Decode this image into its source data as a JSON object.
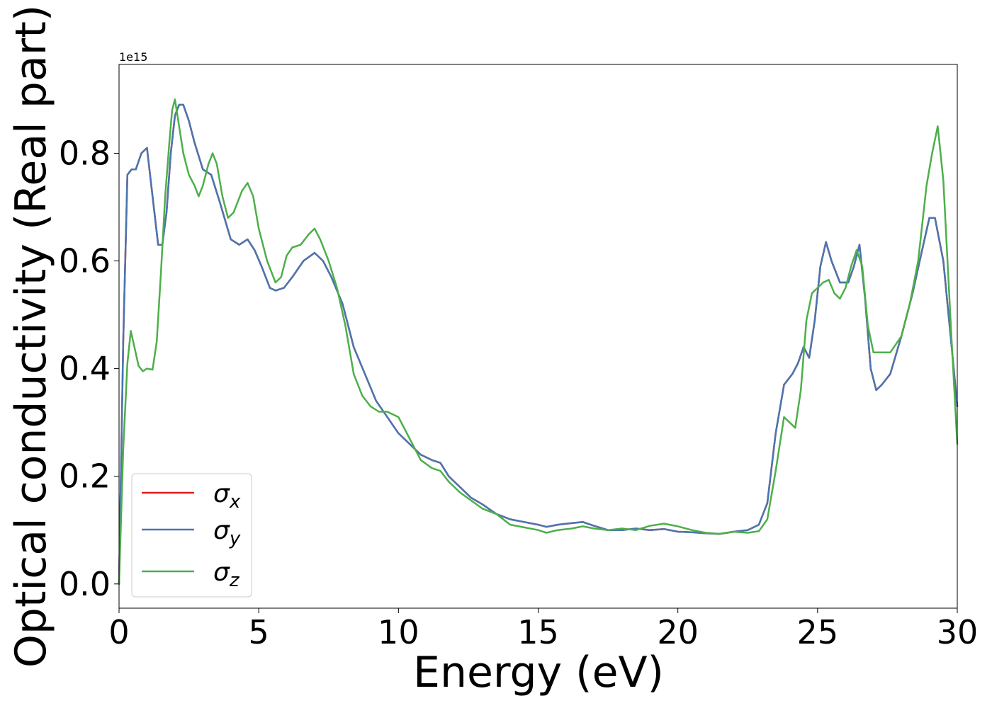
{
  "chart_data": {
    "type": "line",
    "xlabel": "Energy (eV)",
    "ylabel": "Optical conductivity (Real part)",
    "y_offset_label": "1e15",
    "xlim": [
      0,
      30
    ],
    "ylim": [
      -0.045,
      0.965
    ],
    "x_ticks": [
      0,
      5,
      10,
      15,
      20,
      25,
      30
    ],
    "x_tick_labels": [
      "0",
      "5",
      "10",
      "15",
      "20",
      "25",
      "30"
    ],
    "y_ticks": [
      0.0,
      0.2,
      0.4,
      0.6,
      0.8
    ],
    "y_tick_labels": [
      "0.0",
      "0.2",
      "0.4",
      "0.6",
      "0.8"
    ],
    "grid": false,
    "legend_position": "lower-left",
    "series": [
      {
        "name": "σx",
        "sub": "x",
        "color": "#e41a1c",
        "x": [
          0.0,
          0.15,
          0.3,
          0.45,
          0.6,
          0.8,
          1.0,
          1.2,
          1.4,
          1.55,
          1.7,
          1.85,
          2.0,
          2.15,
          2.3,
          2.5,
          2.7,
          3.0,
          3.3,
          3.6,
          4.0,
          4.3,
          4.6,
          4.85,
          5.1,
          5.4,
          5.6,
          5.9,
          6.2,
          6.6,
          7.0,
          7.3,
          7.6,
          8.0,
          8.4,
          8.8,
          9.2,
          9.6,
          10.0,
          10.4,
          10.8,
          11.2,
          11.5,
          11.8,
          12.2,
          12.6,
          13.0,
          13.5,
          14.0,
          14.5,
          15.0,
          15.3,
          15.7,
          16.2,
          16.6,
          17.0,
          17.5,
          18.0,
          18.5,
          19.0,
          19.5,
          20.0,
          20.5,
          21.0,
          21.5,
          22.0,
          22.5,
          22.9,
          23.2,
          23.5,
          23.8,
          24.1,
          24.3,
          24.5,
          24.7,
          24.9,
          25.1,
          25.3,
          25.5,
          25.8,
          26.1,
          26.3,
          26.5,
          26.7,
          26.9,
          27.1,
          27.3,
          27.6,
          28.0,
          28.4,
          28.7,
          29.0,
          29.2,
          29.5,
          29.8,
          30.0
        ],
        "values": [
          0.0,
          0.45,
          0.76,
          0.77,
          0.77,
          0.8,
          0.81,
          0.72,
          0.63,
          0.63,
          0.69,
          0.8,
          0.87,
          0.89,
          0.89,
          0.86,
          0.82,
          0.77,
          0.76,
          0.71,
          0.64,
          0.63,
          0.64,
          0.62,
          0.59,
          0.55,
          0.545,
          0.55,
          0.57,
          0.6,
          0.615,
          0.6,
          0.57,
          0.52,
          0.44,
          0.39,
          0.34,
          0.31,
          0.28,
          0.26,
          0.24,
          0.23,
          0.225,
          0.2,
          0.18,
          0.16,
          0.148,
          0.13,
          0.12,
          0.115,
          0.11,
          0.106,
          0.11,
          0.113,
          0.115,
          0.108,
          0.1,
          0.1,
          0.103,
          0.1,
          0.102,
          0.097,
          0.096,
          0.094,
          0.093,
          0.097,
          0.1,
          0.11,
          0.15,
          0.28,
          0.37,
          0.39,
          0.41,
          0.44,
          0.42,
          0.49,
          0.59,
          0.635,
          0.6,
          0.56,
          0.56,
          0.59,
          0.63,
          0.53,
          0.4,
          0.36,
          0.37,
          0.39,
          0.46,
          0.54,
          0.61,
          0.68,
          0.68,
          0.6,
          0.44,
          0.33
        ]
      },
      {
        "name": "σy",
        "sub": "y",
        "color": "#4a76b0",
        "x": [
          0.0,
          0.15,
          0.3,
          0.45,
          0.6,
          0.8,
          1.0,
          1.2,
          1.4,
          1.55,
          1.7,
          1.85,
          2.0,
          2.15,
          2.3,
          2.5,
          2.7,
          3.0,
          3.3,
          3.6,
          4.0,
          4.3,
          4.6,
          4.85,
          5.1,
          5.4,
          5.6,
          5.9,
          6.2,
          6.6,
          7.0,
          7.3,
          7.6,
          8.0,
          8.4,
          8.8,
          9.2,
          9.6,
          10.0,
          10.4,
          10.8,
          11.2,
          11.5,
          11.8,
          12.2,
          12.6,
          13.0,
          13.5,
          14.0,
          14.5,
          15.0,
          15.3,
          15.7,
          16.2,
          16.6,
          17.0,
          17.5,
          18.0,
          18.5,
          19.0,
          19.5,
          20.0,
          20.5,
          21.0,
          21.5,
          22.0,
          22.5,
          22.9,
          23.2,
          23.5,
          23.8,
          24.1,
          24.3,
          24.5,
          24.7,
          24.9,
          25.1,
          25.3,
          25.5,
          25.8,
          26.1,
          26.3,
          26.5,
          26.7,
          26.9,
          27.1,
          27.3,
          27.6,
          28.0,
          28.4,
          28.7,
          29.0,
          29.2,
          29.5,
          29.8,
          30.0
        ],
        "values": [
          0.0,
          0.45,
          0.76,
          0.77,
          0.77,
          0.8,
          0.81,
          0.72,
          0.63,
          0.63,
          0.69,
          0.8,
          0.87,
          0.89,
          0.89,
          0.86,
          0.82,
          0.77,
          0.76,
          0.71,
          0.64,
          0.63,
          0.64,
          0.62,
          0.59,
          0.55,
          0.545,
          0.55,
          0.57,
          0.6,
          0.615,
          0.6,
          0.57,
          0.52,
          0.44,
          0.39,
          0.34,
          0.31,
          0.28,
          0.26,
          0.24,
          0.23,
          0.225,
          0.2,
          0.18,
          0.16,
          0.148,
          0.13,
          0.12,
          0.115,
          0.11,
          0.106,
          0.11,
          0.113,
          0.115,
          0.108,
          0.1,
          0.1,
          0.103,
          0.1,
          0.102,
          0.097,
          0.096,
          0.094,
          0.093,
          0.097,
          0.1,
          0.11,
          0.15,
          0.28,
          0.37,
          0.39,
          0.41,
          0.44,
          0.42,
          0.49,
          0.59,
          0.635,
          0.6,
          0.56,
          0.56,
          0.59,
          0.63,
          0.53,
          0.4,
          0.36,
          0.37,
          0.39,
          0.46,
          0.54,
          0.61,
          0.68,
          0.68,
          0.6,
          0.44,
          0.33
        ]
      },
      {
        "name": "σz",
        "sub": "z",
        "color": "#4daf4a",
        "x": [
          0.0,
          0.15,
          0.3,
          0.42,
          0.55,
          0.7,
          0.85,
          1.0,
          1.2,
          1.35,
          1.5,
          1.65,
          1.8,
          1.9,
          2.0,
          2.15,
          2.3,
          2.5,
          2.7,
          2.85,
          3.0,
          3.2,
          3.35,
          3.5,
          3.7,
          3.9,
          4.1,
          4.4,
          4.6,
          4.8,
          5.0,
          5.3,
          5.6,
          5.8,
          6.0,
          6.2,
          6.5,
          6.8,
          7.0,
          7.2,
          7.5,
          7.8,
          8.1,
          8.4,
          8.7,
          9.0,
          9.3,
          9.6,
          10.0,
          10.4,
          10.8,
          11.2,
          11.5,
          11.8,
          12.2,
          12.6,
          13.0,
          13.5,
          14.0,
          14.5,
          15.0,
          15.3,
          15.7,
          16.2,
          16.6,
          17.0,
          17.5,
          18.0,
          18.5,
          19.0,
          19.5,
          20.0,
          20.5,
          21.0,
          21.5,
          22.0,
          22.5,
          22.9,
          23.2,
          23.5,
          23.8,
          24.0,
          24.2,
          24.4,
          24.6,
          24.8,
          25.0,
          25.2,
          25.4,
          25.6,
          25.8,
          26.0,
          26.2,
          26.4,
          26.6,
          26.8,
          27.0,
          27.3,
          27.6,
          28.0,
          28.3,
          28.6,
          28.9,
          29.1,
          29.3,
          29.5,
          29.8,
          30.0
        ],
        "values": [
          0.0,
          0.25,
          0.41,
          0.47,
          0.44,
          0.405,
          0.395,
          0.4,
          0.398,
          0.45,
          0.58,
          0.72,
          0.82,
          0.88,
          0.9,
          0.85,
          0.8,
          0.76,
          0.74,
          0.72,
          0.74,
          0.78,
          0.8,
          0.78,
          0.72,
          0.68,
          0.69,
          0.73,
          0.745,
          0.72,
          0.66,
          0.6,
          0.56,
          0.57,
          0.61,
          0.625,
          0.63,
          0.65,
          0.66,
          0.64,
          0.6,
          0.55,
          0.48,
          0.39,
          0.35,
          0.33,
          0.32,
          0.32,
          0.31,
          0.27,
          0.23,
          0.215,
          0.21,
          0.19,
          0.17,
          0.155,
          0.14,
          0.13,
          0.11,
          0.105,
          0.1,
          0.095,
          0.1,
          0.103,
          0.107,
          0.103,
          0.1,
          0.103,
          0.1,
          0.108,
          0.112,
          0.107,
          0.1,
          0.095,
          0.093,
          0.097,
          0.095,
          0.098,
          0.12,
          0.21,
          0.31,
          0.3,
          0.29,
          0.36,
          0.49,
          0.54,
          0.55,
          0.56,
          0.565,
          0.54,
          0.53,
          0.55,
          0.59,
          0.62,
          0.59,
          0.48,
          0.43,
          0.43,
          0.43,
          0.46,
          0.52,
          0.6,
          0.74,
          0.8,
          0.85,
          0.75,
          0.45,
          0.26
        ]
      }
    ]
  }
}
